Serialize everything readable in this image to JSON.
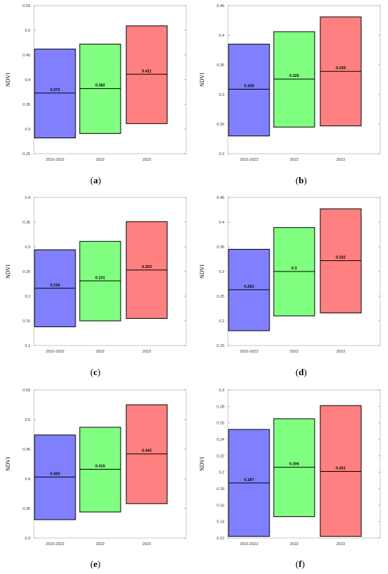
{
  "figure": {
    "panels": [
      {
        "caption_letter": "a"
      },
      {
        "caption_letter": "b"
      },
      {
        "caption_letter": "c"
      },
      {
        "caption_letter": "d"
      },
      {
        "caption_letter": "e"
      },
      {
        "caption_letter": "f"
      }
    ]
  },
  "chart_data": [
    {
      "type": "bar",
      "subtype": "floating-range-with-median-line",
      "ylabel": "NDVI",
      "xlabel": "",
      "categories": [
        "2015-2022",
        "2022",
        "2023"
      ],
      "ylim": [
        0.25,
        0.55
      ],
      "yticks": [
        "0.25",
        "0.3",
        "0.35",
        "0.4",
        "0.45",
        "0.5",
        "0.55"
      ],
      "series": [
        {
          "min": [
            0.282,
            0.291,
            0.311
          ],
          "max": [
            0.462,
            0.472,
            0.509
          ],
          "mid": [
            0.373,
            0.382,
            0.411
          ],
          "mid_labels": [
            "0.373",
            "0.382",
            "0.411"
          ]
        }
      ],
      "colors": [
        "#8080ff",
        "#80ff80",
        "#ff8080"
      ],
      "grid": false
    },
    {
      "type": "bar",
      "subtype": "floating-range-with-median-line",
      "ylabel": "NDVI",
      "xlabel": "",
      "categories": [
        "2015-2022",
        "2022",
        "2023"
      ],
      "ylim": [
        0.2,
        0.45
      ],
      "yticks": [
        "0.2",
        "0.25",
        "0.3",
        "0.35",
        "0.4",
        "0.45"
      ],
      "series": [
        {
          "min": [
            0.23,
            0.245,
            0.247
          ],
          "max": [
            0.385,
            0.406,
            0.431
          ],
          "mid": [
            0.309,
            0.326,
            0.339
          ],
          "mid_labels": [
            "0.309",
            "0.326",
            "0.339"
          ]
        }
      ],
      "colors": [
        "#8080ff",
        "#80ff80",
        "#ff8080"
      ],
      "grid": false
    },
    {
      "type": "bar",
      "subtype": "floating-range-with-median-line",
      "ylabel": "NDVI",
      "xlabel": "",
      "categories": [
        "2015-2022",
        "2022",
        "2023"
      ],
      "ylim": [
        0.1,
        0.4
      ],
      "yticks": [
        "0.1",
        "0.15",
        "0.2",
        "0.25",
        "0.3",
        "0.35",
        "0.4"
      ],
      "series": [
        {
          "min": [
            0.138,
            0.15,
            0.155
          ],
          "max": [
            0.294,
            0.311,
            0.351
          ],
          "mid": [
            0.216,
            0.231,
            0.253
          ],
          "mid_labels": [
            "0.216",
            "0.231",
            "0.253"
          ]
        }
      ],
      "colors": [
        "#8080ff",
        "#80ff80",
        "#ff8080"
      ],
      "grid": false
    },
    {
      "type": "bar",
      "subtype": "floating-range-with-median-line",
      "ylabel": "NDVI",
      "xlabel": "",
      "categories": [
        "2015-2022",
        "2022",
        "2023"
      ],
      "ylim": [
        0.15,
        0.45
      ],
      "yticks": [
        "0.15",
        "0.2",
        "0.25",
        "0.3",
        "0.35",
        "0.4",
        "0.45"
      ],
      "series": [
        {
          "min": [
            0.18,
            0.21,
            0.216
          ],
          "max": [
            0.345,
            0.389,
            0.427
          ],
          "mid": [
            0.263,
            0.3,
            0.322
          ],
          "mid_labels": [
            "0.263",
            "0.3",
            "0.322"
          ]
        }
      ],
      "colors": [
        "#8080ff",
        "#80ff80",
        "#ff8080"
      ],
      "grid": false
    },
    {
      "type": "bar",
      "subtype": "floating-range-with-median-line",
      "ylabel": "NDVI",
      "xlabel": "",
      "categories": [
        "2015-2022",
        "2022",
        "2023"
      ],
      "ylim": [
        0.3,
        0.55
      ],
      "yticks": [
        "0.3",
        "0.35",
        "0.4",
        "0.45",
        "0.5",
        "0.55"
      ],
      "series": [
        {
          "min": [
            0.331,
            0.344,
            0.358
          ],
          "max": [
            0.474,
            0.487,
            0.525
          ],
          "mid": [
            0.403,
            0.416,
            0.442
          ],
          "mid_labels": [
            "0.403",
            "0.416",
            "0.442"
          ]
        }
      ],
      "colors": [
        "#8080ff",
        "#80ff80",
        "#ff8080"
      ],
      "grid": false
    },
    {
      "type": "bar",
      "subtype": "floating-range-with-median-line",
      "ylabel": "NDVI",
      "xlabel": "",
      "categories": [
        "2015-2022",
        "2022",
        "2023"
      ],
      "ylim": [
        0.12,
        0.3
      ],
      "yticks": [
        "0.12",
        "0.14",
        "0.16",
        "0.18",
        "0.2",
        "0.22",
        "0.24",
        "0.26",
        "0.28",
        "0.3"
      ],
      "series": [
        {
          "min": [
            0.122,
            0.146,
            0.122
          ],
          "max": [
            0.252,
            0.265,
            0.281
          ],
          "mid": [
            0.187,
            0.206,
            0.201
          ],
          "mid_labels": [
            "0.187",
            "0.206",
            "0.201"
          ]
        }
      ],
      "colors": [
        "#8080ff",
        "#80ff80",
        "#ff8080"
      ],
      "grid": false
    }
  ]
}
